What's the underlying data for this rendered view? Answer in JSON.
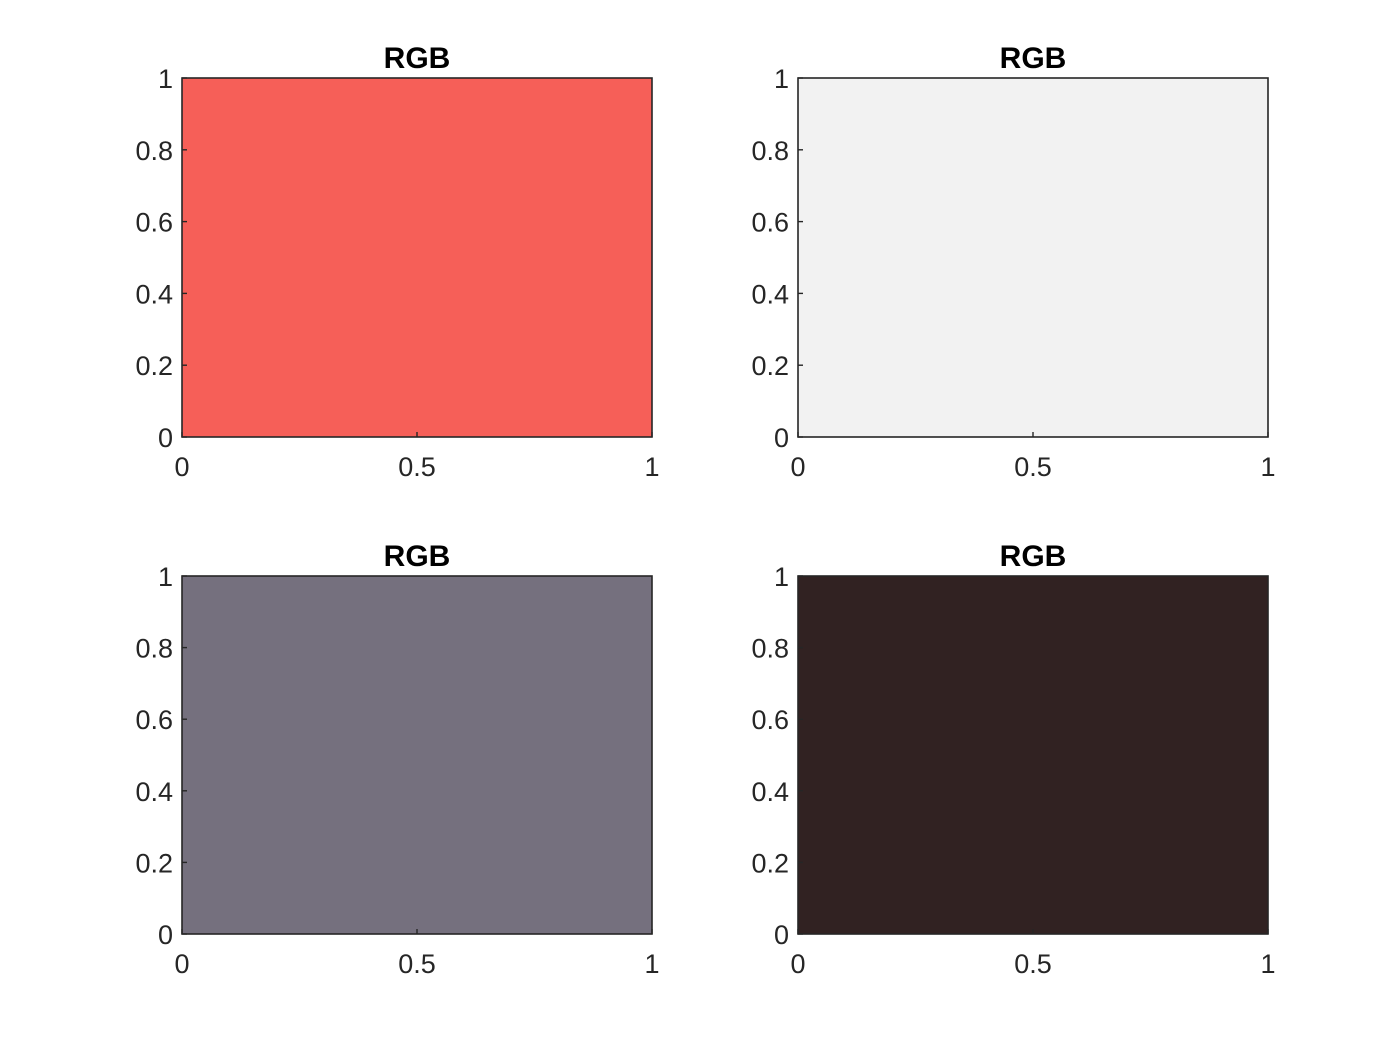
{
  "chart_data": [
    {
      "type": "area",
      "title": "RGB",
      "fill_color": "#f65f58",
      "xlim": [
        0,
        1
      ],
      "ylim": [
        0,
        1
      ],
      "xticks": [
        "0",
        "0.5",
        "1"
      ],
      "yticks": [
        "0",
        "0.2",
        "0.4",
        "0.6",
        "0.8",
        "1"
      ],
      "x": [
        0,
        1
      ],
      "y": [
        1,
        1
      ]
    },
    {
      "type": "area",
      "title": "RGB",
      "fill_color": "#f2f2f2",
      "xlim": [
        0,
        1
      ],
      "ylim": [
        0,
        1
      ],
      "xticks": [
        "0",
        "0.5",
        "1"
      ],
      "yticks": [
        "0",
        "0.2",
        "0.4",
        "0.6",
        "0.8",
        "1"
      ],
      "x": [
        0,
        1
      ],
      "y": [
        1,
        1
      ]
    },
    {
      "type": "area",
      "title": "RGB",
      "fill_color": "#75707e",
      "xlim": [
        0,
        1
      ],
      "ylim": [
        0,
        1
      ],
      "xticks": [
        "0",
        "0.5",
        "1"
      ],
      "yticks": [
        "0",
        "0.2",
        "0.4",
        "0.6",
        "0.8",
        "1"
      ],
      "x": [
        0,
        1
      ],
      "y": [
        1,
        1
      ]
    },
    {
      "type": "area",
      "title": "RGB",
      "fill_color": "#312222",
      "xlim": [
        0,
        1
      ],
      "ylim": [
        0,
        1
      ],
      "xticks": [
        "0",
        "0.5",
        "1"
      ],
      "yticks": [
        "0",
        "0.2",
        "0.4",
        "0.6",
        "0.8",
        "1"
      ],
      "x": [
        0,
        1
      ],
      "y": [
        1,
        1
      ]
    }
  ]
}
